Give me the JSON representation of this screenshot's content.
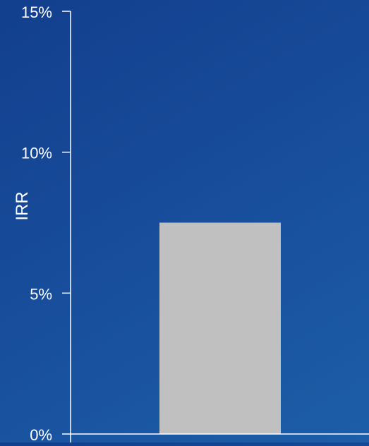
{
  "chart_data": {
    "type": "bar",
    "categories": [
      ""
    ],
    "values": [
      7.5
    ],
    "ylabel": "IRR",
    "xlabel": "",
    "ylim": [
      0,
      15
    ],
    "yticks": [
      0,
      5,
      10,
      15
    ],
    "ytick_labels": [
      "0%",
      "5%",
      "10%",
      "15%"
    ],
    "grid": false,
    "legend": "none"
  },
  "colors": {
    "background_start": "#123f8e",
    "background_end": "#1d5ea8",
    "bar": "#c0c0c0",
    "axis": "#ffffff",
    "text": "#ffffff"
  }
}
